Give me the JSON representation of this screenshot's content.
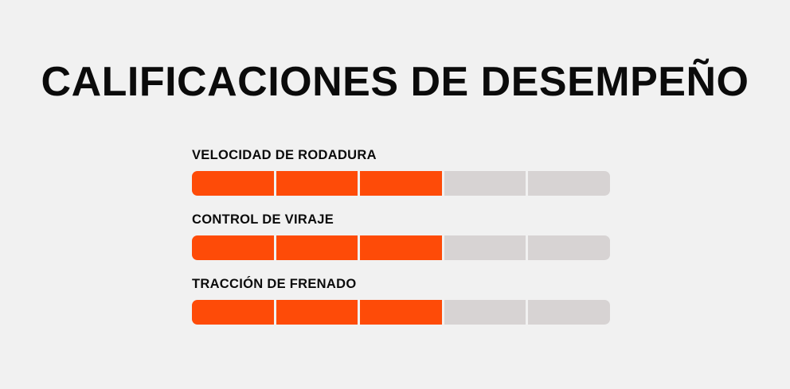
{
  "title": "CALIFICACIONES DE DESEMPEÑO",
  "colors": {
    "background": "#f1f1f1",
    "filled": "#fe4b08",
    "empty": "#d7d3d3",
    "text": "#0b0b0b"
  },
  "ratings": [
    {
      "label": "VELOCIDAD DE RODADURA",
      "score": 3,
      "max": 5
    },
    {
      "label": "CONTROL DE VIRAJE",
      "score": 3,
      "max": 5
    },
    {
      "label": "TRACCIÓN DE FRENADO",
      "score": 3,
      "max": 5
    }
  ]
}
